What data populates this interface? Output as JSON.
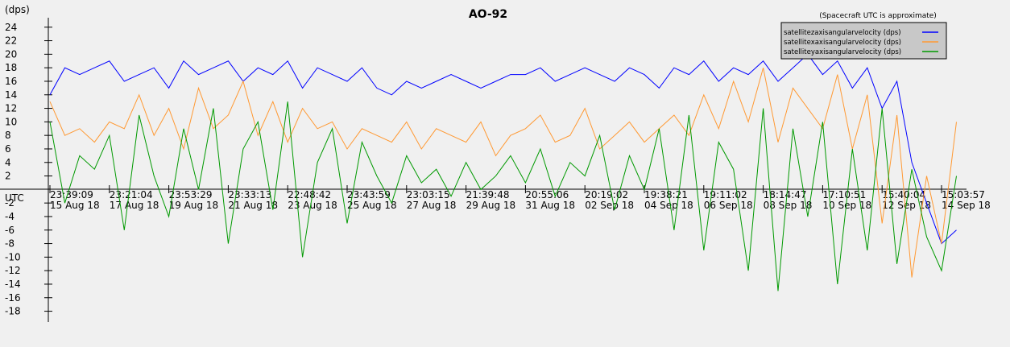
{
  "chart_data": {
    "type": "line",
    "title": "AO-92",
    "subtitle": "(Spacecraft UTC is approximate)",
    "ylabel": "(dps)",
    "zero_label": "UTC",
    "x": [
      0,
      0.5,
      1,
      1.5,
      2,
      2.5,
      3,
      3.5,
      4,
      4.5,
      5,
      5.5,
      6,
      6.5,
      7,
      7.5,
      8,
      8.5,
      9,
      9.5,
      10,
      10.5,
      11,
      11.5,
      12,
      12.5,
      13,
      13.5,
      14,
      14.5,
      15,
      15.5,
      16,
      16.5,
      17,
      17.5,
      18,
      18.5,
      19,
      19.5,
      20,
      20.5,
      21,
      21.5,
      22,
      22.5,
      23,
      23.5,
      24,
      24.5,
      25,
      25.5,
      26,
      26.5,
      27,
      27.5,
      28,
      28.5,
      29,
      29.5,
      30,
      30.5
    ],
    "xlim": [
      0,
      31
    ],
    "xticks": [
      {
        "value": 0,
        "label": "23:39:09\n15 Aug 18"
      },
      {
        "value": 2,
        "label": "23:21:04\n17 Aug 18"
      },
      {
        "value": 4,
        "label": "23:53:29\n19 Aug 18"
      },
      {
        "value": 6,
        "label": "23:33:13\n21 Aug 18"
      },
      {
        "value": 8,
        "label": "22:48:42\n23 Aug 18"
      },
      {
        "value": 10,
        "label": "23:43:59\n25 Aug 18"
      },
      {
        "value": 12,
        "label": "23:03:15\n27 Aug 18"
      },
      {
        "value": 14,
        "label": "21:39:48\n29 Aug 18"
      },
      {
        "value": 16,
        "label": "20:55:06\n31 Aug 18"
      },
      {
        "value": 18,
        "label": "20:19:02\n02 Sep 18"
      },
      {
        "value": 20,
        "label": "19:38:21\n04 Sep 18"
      },
      {
        "value": 22,
        "label": "19:11:02\n06 Sep 18"
      },
      {
        "value": 24,
        "label": "18:14:47\n08 Sep 18"
      },
      {
        "value": 26,
        "label": "17:10:51\n10 Sep 18"
      },
      {
        "value": 28,
        "label": "15:40:04\n12 Sep 18"
      },
      {
        "value": 30,
        "label": "15:03:57\n14 Sep 18"
      }
    ],
    "ylim": [
      -19.6,
      25.4
    ],
    "yticks": [
      -18,
      -16,
      -14,
      -12,
      -10,
      -8,
      -6,
      -4,
      -2,
      2,
      4,
      6,
      8,
      10,
      12,
      14,
      16,
      18,
      20,
      22,
      24
    ],
    "legend": "top-right",
    "series": [
      {
        "name": "satellitezaxisangularvelocity (dps)",
        "color": "#0000ff",
        "values": [
          14,
          18,
          17,
          18,
          19,
          16,
          17,
          18,
          15,
          19,
          17,
          18,
          19,
          16,
          18,
          17,
          19,
          15,
          18,
          17,
          16,
          18,
          15,
          14,
          16,
          15,
          16,
          17,
          16,
          15,
          16,
          17,
          17,
          18,
          16,
          17,
          18,
          17,
          16,
          18,
          17,
          15,
          18,
          17,
          19,
          16,
          18,
          17,
          19,
          16,
          18,
          20,
          17,
          19,
          15,
          18,
          12,
          16,
          4,
          -2,
          -8,
          -6
        ]
      },
      {
        "name": "satellitexaxisangularvelocity (dps)",
        "color": "#ff9933",
        "values": [
          13,
          8,
          9,
          7,
          10,
          9,
          14,
          8,
          12,
          6,
          15,
          9,
          11,
          16,
          8,
          13,
          7,
          12,
          9,
          10,
          6,
          9,
          8,
          7,
          10,
          6,
          9,
          8,
          7,
          10,
          5,
          8,
          9,
          11,
          7,
          8,
          12,
          6,
          8,
          10,
          7,
          9,
          11,
          8,
          14,
          9,
          16,
          10,
          18,
          7,
          15,
          12,
          9,
          17,
          6,
          14,
          -5,
          11,
          -13,
          2,
          -8,
          10
        ]
      },
      {
        "name": "satelliteyaxisangularvelocity (dps)",
        "color": "#009900",
        "values": [
          10,
          -2,
          5,
          3,
          8,
          -6,
          11,
          2,
          -4,
          9,
          0,
          12,
          -8,
          6,
          10,
          -3,
          13,
          -10,
          4,
          9,
          -5,
          7,
          2,
          -2,
          5,
          1,
          3,
          -1,
          4,
          0,
          2,
          5,
          1,
          6,
          -1,
          4,
          2,
          8,
          -3,
          5,
          0,
          9,
          -6,
          11,
          -9,
          7,
          3,
          -12,
          12,
          -15,
          9,
          -4,
          10,
          -14,
          6,
          -9,
          12,
          -11,
          3,
          -7,
          -12,
          2
        ]
      }
    ]
  }
}
